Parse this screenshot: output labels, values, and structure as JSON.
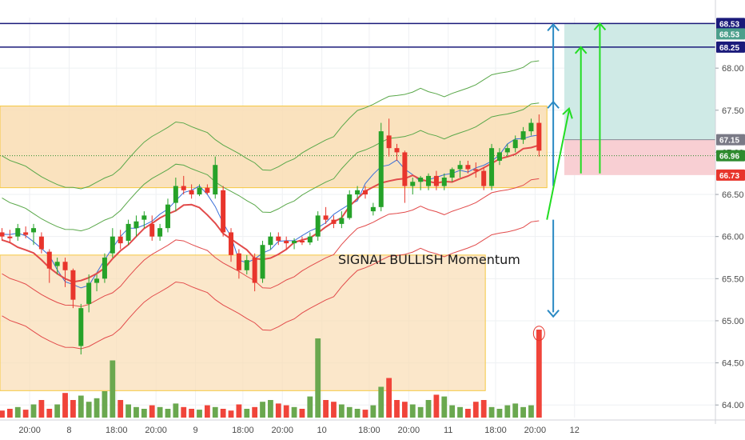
{
  "chart_data": {
    "type": "candlestick",
    "y_axis": {
      "range": [
        63.85,
        68.6
      ],
      "ticks": [
        "64.00",
        "64.50",
        "65.00",
        "65.50",
        "66.00",
        "66.50",
        "67.00",
        "67.50",
        "68.00"
      ],
      "tick_values": [
        64.0,
        64.5,
        65.0,
        65.5,
        66.0,
        66.5,
        67.0,
        67.5,
        68.0
      ]
    },
    "x_axis": {
      "labels": [
        {
          "text": "20:00",
          "index": 3.5
        },
        {
          "text": "8",
          "index": 8.5
        },
        {
          "text": "18:00",
          "index": 14.5
        },
        {
          "text": "20:00",
          "index": 19.5
        },
        {
          "text": "9",
          "index": 24.5
        },
        {
          "text": "18:00",
          "index": 30.5
        },
        {
          "text": "20:00",
          "index": 35.5
        },
        {
          "text": "10",
          "index": 40.5
        },
        {
          "text": "18:00",
          "index": 46.5
        },
        {
          "text": "20:00",
          "index": 51.5
        },
        {
          "text": "11",
          "index": 56.5
        },
        {
          "text": "18:00",
          "index": 62.5
        },
        {
          "text": "20:00",
          "index": 67.5
        },
        {
          "text": "12",
          "index": 72.5
        }
      ]
    },
    "colors": {
      "up": "#26a229",
      "down": "#e8352c",
      "vol_up": "#6aa84f",
      "vol_down": "#f0443a",
      "hline": "#1a1a7a",
      "zone_fill": "#f9ddb3",
      "zone_stroke": "#f5c842",
      "target_fill": "#cfeae6",
      "stop_fill": "#f8cfd3",
      "band_outer": "#5aa84a",
      "band_inner": "#e24b4b",
      "ma_blue": "#3a6fd8",
      "ma_red": "#e24b4b",
      "arrow_blue": "#2b8ac4",
      "arrow_green": "#22dd22"
    },
    "candles": [
      [
        66.05,
        66.1,
        65.95,
        66.0
      ],
      [
        66.0,
        66.08,
        65.92,
        65.98
      ],
      [
        66.0,
        66.15,
        65.95,
        66.1
      ],
      [
        66.05,
        66.12,
        65.98,
        66.02
      ],
      [
        66.05,
        66.15,
        65.9,
        66.1
      ],
      [
        66.0,
        66.05,
        65.8,
        65.85
      ],
      [
        65.82,
        65.85,
        65.45,
        65.62
      ],
      [
        65.65,
        65.75,
        65.55,
        65.7
      ],
      [
        65.7,
        65.75,
        65.4,
        65.6
      ],
      [
        65.6,
        65.62,
        65.15,
        65.25
      ],
      [
        64.7,
        65.2,
        64.6,
        65.15
      ],
      [
        65.2,
        65.55,
        65.1,
        65.45
      ],
      [
        65.45,
        65.55,
        65.35,
        65.5
      ],
      [
        65.5,
        65.8,
        65.45,
        65.75
      ],
      [
        65.8,
        66.1,
        65.75,
        66.0
      ],
      [
        66.0,
        66.08,
        65.85,
        65.92
      ],
      [
        65.95,
        66.2,
        65.9,
        66.15
      ],
      [
        66.1,
        66.25,
        66.0,
        66.18
      ],
      [
        66.2,
        66.3,
        66.1,
        66.25
      ],
      [
        66.15,
        66.25,
        65.95,
        66.0
      ],
      [
        66.0,
        66.15,
        65.95,
        66.1
      ],
      [
        66.1,
        66.45,
        66.05,
        66.38
      ],
      [
        66.4,
        66.7,
        66.3,
        66.6
      ],
      [
        66.6,
        66.72,
        66.5,
        66.55
      ],
      [
        66.55,
        66.62,
        66.45,
        66.5
      ],
      [
        66.5,
        66.62,
        66.48,
        66.58
      ],
      [
        66.58,
        66.62,
        66.5,
        66.52
      ],
      [
        66.5,
        66.95,
        66.45,
        66.85
      ],
      [
        66.55,
        66.6,
        66.0,
        66.05
      ],
      [
        66.05,
        66.1,
        65.7,
        65.78
      ],
      [
        65.8,
        65.85,
        65.5,
        65.6
      ],
      [
        65.6,
        65.78,
        65.55,
        65.72
      ],
      [
        65.75,
        65.8,
        65.35,
        65.45
      ],
      [
        65.5,
        65.95,
        65.45,
        65.9
      ],
      [
        65.9,
        66.05,
        65.85,
        66.0
      ],
      [
        66.0,
        66.05,
        65.9,
        65.95
      ],
      [
        65.95,
        66.0,
        65.85,
        65.92
      ],
      [
        65.92,
        65.98,
        65.85,
        65.95
      ],
      [
        65.95,
        66.0,
        65.9,
        65.93
      ],
      [
        65.93,
        66.05,
        65.9,
        66.0
      ],
      [
        66.0,
        66.3,
        65.95,
        66.25
      ],
      [
        66.25,
        66.35,
        66.15,
        66.2
      ],
      [
        66.2,
        66.25,
        66.1,
        66.15
      ],
      [
        66.15,
        66.3,
        66.1,
        66.22
      ],
      [
        66.22,
        66.55,
        66.2,
        66.5
      ],
      [
        66.5,
        66.6,
        66.45,
        66.55
      ],
      [
        66.55,
        66.6,
        66.45,
        66.5
      ],
      [
        66.3,
        66.4,
        66.25,
        66.35
      ],
      [
        66.35,
        67.35,
        66.3,
        67.25
      ],
      [
        67.2,
        67.4,
        66.95,
        67.05
      ],
      [
        67.05,
        67.1,
        66.9,
        67.0
      ],
      [
        67.0,
        67.02,
        66.4,
        66.6
      ],
      [
        66.6,
        66.7,
        66.5,
        66.65
      ],
      [
        66.65,
        66.72,
        66.55,
        66.7
      ],
      [
        66.6,
        66.75,
        66.55,
        66.72
      ],
      [
        66.72,
        66.78,
        66.55,
        66.6
      ],
      [
        66.6,
        66.75,
        66.55,
        66.7
      ],
      [
        66.7,
        66.82,
        66.65,
        66.8
      ],
      [
        66.8,
        66.9,
        66.7,
        66.85
      ],
      [
        66.85,
        66.9,
        66.75,
        66.8
      ],
      [
        66.8,
        66.88,
        66.7,
        66.78
      ],
      [
        66.78,
        66.82,
        66.55,
        66.6
      ],
      [
        66.6,
        67.1,
        66.55,
        67.05
      ],
      [
        66.9,
        67.05,
        66.85,
        67.0
      ],
      [
        67.0,
        67.1,
        66.95,
        67.05
      ],
      [
        67.05,
        67.2,
        67.0,
        67.15
      ],
      [
        67.15,
        67.3,
        67.1,
        67.25
      ],
      [
        67.25,
        67.4,
        67.2,
        67.35
      ],
      [
        67.35,
        67.45,
        66.95,
        67.02
      ]
    ],
    "volumes": [
      0.08,
      0.1,
      0.12,
      0.09,
      0.15,
      0.2,
      0.1,
      0.15,
      0.28,
      0.2,
      0.25,
      0.18,
      0.22,
      0.3,
      0.65,
      0.2,
      0.15,
      0.12,
      0.1,
      0.14,
      0.12,
      0.1,
      0.16,
      0.12,
      0.1,
      0.09,
      0.14,
      0.12,
      0.1,
      0.08,
      0.15,
      0.1,
      0.12,
      0.18,
      0.2,
      0.16,
      0.14,
      0.12,
      0.1,
      0.24,
      0.9,
      0.2,
      0.18,
      0.15,
      0.12,
      0.1,
      0.09,
      0.14,
      0.35,
      0.45,
      0.2,
      0.18,
      0.15,
      0.12,
      0.2,
      0.26,
      0.24,
      0.14,
      0.12,
      0.1,
      0.18,
      0.2,
      0.12,
      0.1,
      0.14,
      0.16,
      0.12,
      0.14,
      1.0
    ],
    "horizontal_lines": [
      {
        "value": 68.53,
        "label": "68.53"
      },
      {
        "value": 68.25,
        "label": "68.25"
      }
    ],
    "price_badges": [
      {
        "value": 68.53,
        "label": "68.53",
        "color": "#1a1a7a"
      },
      {
        "value": 68.53,
        "label": "68.53",
        "color": "#4c9f8c",
        "offset": 13
      },
      {
        "value": 68.25,
        "label": "68.25",
        "color": "#1a1a7a"
      },
      {
        "value": 67.15,
        "label": "67.15",
        "color": "#7a7a86"
      },
      {
        "value": 66.96,
        "label": "66.96",
        "color": "#2e8b2e"
      },
      {
        "value": 66.73,
        "label": "66.73",
        "color": "#e8352c"
      }
    ],
    "annotation": "SIGNAL BULLISH Momentum"
  }
}
